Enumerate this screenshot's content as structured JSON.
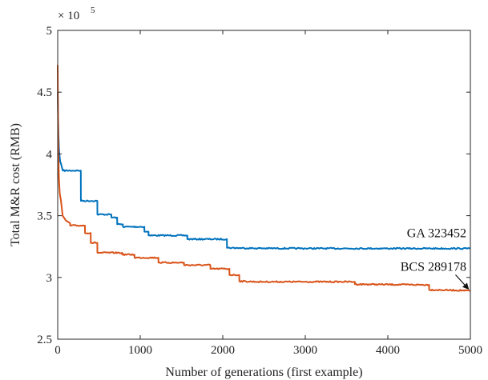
{
  "chart_data": {
    "type": "line",
    "xlabel": "Number of generations (first example)",
    "ylabel": "Total M&R cost (RMB)",
    "xlim": [
      0,
      5000
    ],
    "ylim": [
      250000,
      500000
    ],
    "y_multiplier": {
      "base": "× 10",
      "exponent": "5"
    },
    "x_ticks": [
      0,
      1000,
      2000,
      3000,
      4000,
      5000
    ],
    "x_tick_labels": [
      "0",
      "1000",
      "2000",
      "3000",
      "4000",
      "5000"
    ],
    "y_ticks": [
      250000,
      300000,
      350000,
      400000,
      450000,
      500000
    ],
    "y_tick_labels": [
      "2.5",
      "3",
      "3.5",
      "4",
      "4.5",
      "5"
    ],
    "grid": false,
    "colors": {
      "GA": "#0072BD",
      "BCS": "#D95319",
      "axis": "#262626"
    },
    "series": [
      {
        "name": "GA",
        "color": "#0072BD",
        "x": [
          0,
          5,
          10,
          15,
          20,
          30,
          40,
          60,
          61,
          280,
          281,
          480,
          481,
          650,
          651,
          720,
          721,
          790,
          791,
          1050,
          1051,
          1100,
          1101,
          1570,
          1571,
          2050,
          2051,
          2400,
          3000,
          4000,
          5000
        ],
        "y": [
          450000,
          430000,
          415000,
          405000,
          400000,
          394000,
          392000,
          387000,
          386500,
          386500,
          362000,
          362000,
          351000,
          351000,
          348500,
          348500,
          343000,
          343000,
          341000,
          341000,
          337000,
          337000,
          334000,
          334000,
          331000,
          331000,
          324000,
          323600,
          323500,
          323452,
          323452
        ]
      },
      {
        "name": "BCS",
        "color": "#D95319",
        "x": [
          0,
          3,
          8,
          15,
          25,
          40,
          60,
          100,
          150,
          151,
          330,
          331,
          400,
          401,
          480,
          481,
          780,
          781,
          930,
          931,
          1220,
          1221,
          1530,
          1531,
          1850,
          1851,
          2080,
          2081,
          2200,
          2201,
          2400,
          3000,
          3600,
          3601,
          4500,
          4501,
          4900,
          5000
        ],
        "y": [
          472000,
          440000,
          400000,
          380000,
          368000,
          362000,
          350000,
          346000,
          344000,
          342000,
          342000,
          336000,
          336000,
          328000,
          328000,
          320000,
          320000,
          318500,
          318500,
          316000,
          316000,
          312000,
          312000,
          310000,
          310000,
          307000,
          307000,
          302000,
          302000,
          297000,
          296500,
          296500,
          296500,
          294500,
          294000,
          290000,
          289500,
          289178
        ]
      }
    ],
    "annotations": [
      {
        "text": "GA 323452",
        "series": "GA"
      },
      {
        "text": "BCS 289178",
        "series": "BCS",
        "arrow_to": [
          4990,
          289178
        ]
      }
    ]
  }
}
